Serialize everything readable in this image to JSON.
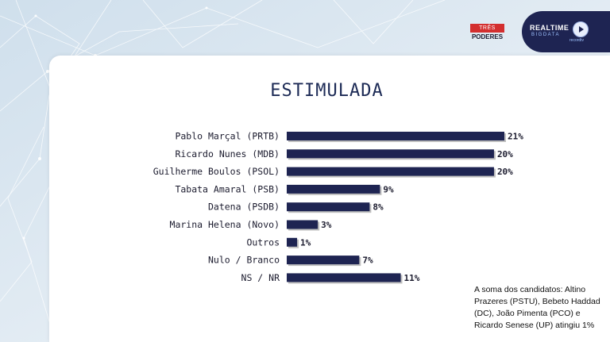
{
  "header": {
    "tres_poderes_logo": {
      "top": "TRÊS",
      "bottom": "PODERES"
    },
    "realtime_logo": {
      "line1": "REALTIME",
      "line2": "BIGDATA",
      "sub": "recordtv"
    }
  },
  "note": "A soma dos candidatos: Altino Prazeres (PSTU), Bebeto Haddad (DC), João Pimenta (PCO) e Ricardo Senese (UP) atingiu 1%",
  "colors": {
    "bar": "#1e2452",
    "title": "#1c2a55"
  },
  "chart_data": {
    "type": "bar",
    "orientation": "horizontal",
    "title": "ESTIMULADA",
    "categories": [
      "Pablo Marçal (PRTB)",
      "Ricardo Nunes (MDB)",
      "Guilherme Boulos (PSOL)",
      "Tabata Amaral (PSB)",
      "Datena (PSDB)",
      "Marina Helena (Novo)",
      "Outros",
      "Nulo / Branco",
      "NS / NR"
    ],
    "values": [
      21,
      20,
      20,
      9,
      8,
      3,
      1,
      7,
      11
    ],
    "value_labels": [
      "21%",
      "20%",
      "20%",
      "9%",
      "8%",
      "3%",
      "1%",
      "7%",
      "11%"
    ],
    "xlim": [
      0,
      21
    ],
    "grid": false,
    "legend": "none"
  }
}
